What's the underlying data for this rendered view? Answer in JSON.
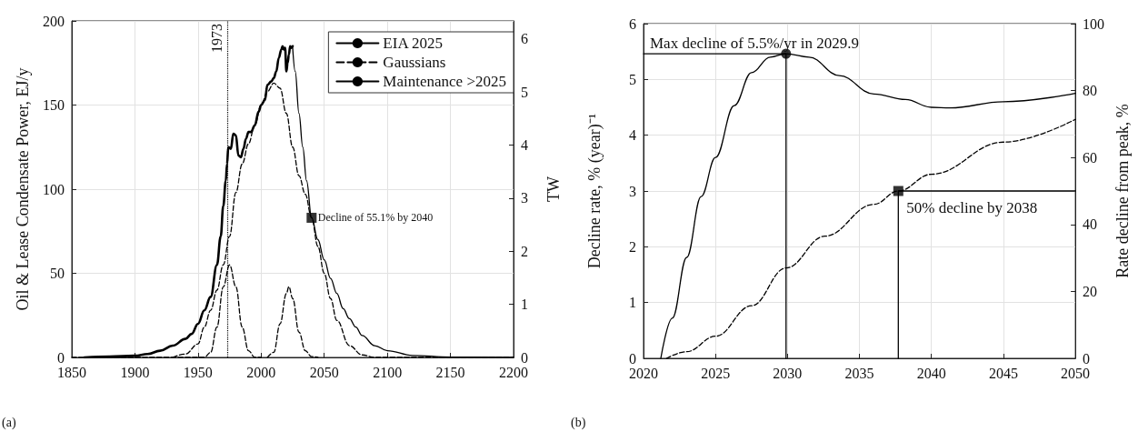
{
  "chart_data": [
    {
      "type": "line",
      "xlabel": null,
      "ylabel": "Oil & Lease Condensate Power, EJ/y",
      "y2label": "TW",
      "xlim": [
        1850,
        2200
      ],
      "ylim": [
        0,
        200
      ],
      "y2lim": [
        0,
        6.342
      ],
      "xticks": [
        1850,
        1900,
        1950,
        2000,
        2050,
        2100,
        2150,
        2200
      ],
      "yticks": [
        0,
        50,
        100,
        150,
        200
      ],
      "y2ticks": [
        0,
        1,
        2,
        3,
        4,
        5,
        6
      ],
      "grid": true,
      "legend": "top right",
      "marker": "none",
      "series": [
        {
          "name": "EIA 2025",
          "color": "#000000",
          "line_style": "solid",
          "x": [
            1860,
            1880,
            1900,
            1910,
            1920,
            1930,
            1940,
            1945,
            1950,
            1955,
            1960,
            1965,
            1968,
            1970,
            1972,
            1973,
            1974,
            1976,
            1978,
            1980,
            1982,
            1984,
            1986,
            1988,
            1990,
            1992,
            1995,
            1998,
            2000,
            2003,
            2005,
            2008,
            2010,
            2012,
            2014,
            2016,
            2017,
            2018,
            2019,
            2020,
            2021,
            2022,
            2023,
            2024,
            2025
          ],
          "values": [
            0,
            0.5,
            1,
            2,
            4,
            7,
            11,
            14,
            20,
            28,
            36,
            55,
            72,
            90,
            105,
            115,
            125,
            124,
            133,
            132,
            120,
            119,
            124,
            130,
            134,
            134,
            138,
            146,
            150,
            153,
            162,
            164,
            166,
            170,
            178,
            183,
            185,
            183,
            184,
            170,
            175,
            180,
            185,
            184,
            185
          ]
        },
        {
          "name": "Gaussians",
          "color": "#000000",
          "line_style": "dashed",
          "x": [
            1930,
            1940,
            1950,
            1955,
            1960,
            1965,
            1970,
            1975,
            1980,
            1985,
            1990,
            1995,
            2000,
            2005,
            2010,
            2015,
            2020,
            2025,
            2030,
            2035,
            2040,
            2045,
            2050,
            2055,
            2060,
            2070,
            2080,
            2090,
            2200
          ],
          "values": [
            0,
            2,
            8,
            18,
            28,
            40,
            55,
            72,
            98,
            115,
            127,
            138,
            150,
            158,
            163,
            160,
            145,
            125,
            108,
            97,
            83,
            66,
            50,
            35,
            22,
            7,
            1.5,
            0,
            0
          ]
        },
        {
          "color": "#000000",
          "line_style": "dashed",
          "x": [
            1850,
            1955,
            1960,
            1965,
            1970,
            1975,
            1980,
            1985,
            1990,
            1995,
            2000
          ],
          "values": [
            0,
            0,
            3,
            18,
            42,
            55,
            42,
            18,
            4,
            0,
            0
          ]
        },
        {
          "color": "#000000",
          "line_style": "dashed",
          "x": [
            2005,
            2010,
            2015,
            2020,
            2022,
            2025,
            2030,
            2035,
            2040,
            2045
          ],
          "values": [
            0,
            3,
            20,
            38,
            42,
            35,
            15,
            4,
            0.5,
            0
          ]
        },
        {
          "name": "Maintenance >2025",
          "color": "#000000",
          "line_style": "solid",
          "x": [
            2025,
            2027,
            2030,
            2033,
            2036,
            2040,
            2045,
            2050,
            2055,
            2060,
            2065,
            2070,
            2075,
            2080,
            2090,
            2100,
            2120,
            2150,
            2200
          ],
          "values": [
            184,
            170,
            145,
            125,
            105,
            83,
            70,
            58,
            47,
            38,
            29,
            23,
            18,
            13,
            7,
            4,
            1.2,
            0.2,
            0
          ]
        },
        {
          "type": "scatter",
          "marker": "square",
          "color": "#000000",
          "x": [
            2040
          ],
          "values": [
            83
          ]
        }
      ],
      "ref_lines": [
        {
          "axis": "x",
          "value": 1973,
          "label": "1973",
          "line_style": "dotted",
          "color": "#000000"
        }
      ],
      "annotations": [
        {
          "text": "Decline of 55.1% by 2040",
          "x": 2040,
          "y": 83
        },
        "(a)"
      ]
    },
    {
      "type": "line",
      "ylabel": "Decline rate, % (year)⁻¹",
      "y2label": "Rate decline from peak, %",
      "xlim": [
        2020,
        2050
      ],
      "ylim": [
        0,
        6
      ],
      "y2lim": [
        0,
        100
      ],
      "xticks": [
        2020,
        2025,
        2030,
        2035,
        2040,
        2045,
        2050
      ],
      "yticks": [
        0,
        1,
        2,
        3,
        4,
        5,
        6
      ],
      "y2ticks": [
        0,
        20,
        40,
        60,
        80,
        100
      ],
      "grid": true,
      "marker": "none",
      "series": [
        {
          "color": "#000000",
          "line_style": "solid",
          "x": [
            2021.2,
            2022,
            2023,
            2024,
            2025,
            2026.3,
            2027.5,
            2028.8,
            2029.9,
            2031.5,
            2033.6,
            2036,
            2038.2,
            2040,
            2041.3,
            2045,
            2050
          ],
          "values": [
            0,
            0.72,
            1.81,
            2.9,
            3.6,
            4.53,
            5.12,
            5.4,
            5.46,
            5.4,
            5.07,
            4.74,
            4.64,
            4.5,
            4.49,
            4.6,
            4.75
          ]
        },
        {
          "color": "#000000",
          "line_style": "dashed",
          "axis": "y2",
          "x": [
            2021.6,
            2023,
            2025,
            2027.5,
            2029.9,
            2032.6,
            2036,
            2037.7,
            2040,
            2045,
            2050
          ],
          "values": [
            0,
            2,
            6.6,
            15.7,
            27,
            36.5,
            46,
            50,
            55,
            64.6,
            71.4
          ]
        },
        {
          "color": "#000000",
          "line_style": "solid",
          "x": [
            2020,
            2029.9,
            2029.9
          ],
          "values": [
            5.46,
            5.46,
            0
          ]
        },
        {
          "color": "#000000",
          "line_style": "solid",
          "x": [
            2037.7,
            2037.7,
            2050
          ],
          "values": [
            0,
            3,
            3
          ]
        },
        {
          "type": "scatter",
          "marker": "circle",
          "color": "#000000",
          "x": [
            2029.9
          ],
          "values": [
            5.46
          ]
        },
        {
          "type": "scatter",
          "marker": "square",
          "color": "#000000",
          "x": [
            2037.7
          ],
          "values": [
            3
          ]
        }
      ],
      "annotations": [
        {
          "text": "Max decline of 5.5%/yr in 2029.9",
          "x": 2029.9,
          "y": 5.46
        },
        {
          "text": "50% decline by 2038",
          "x": 2037.7,
          "y": 3
        },
        "(b)"
      ]
    }
  ]
}
